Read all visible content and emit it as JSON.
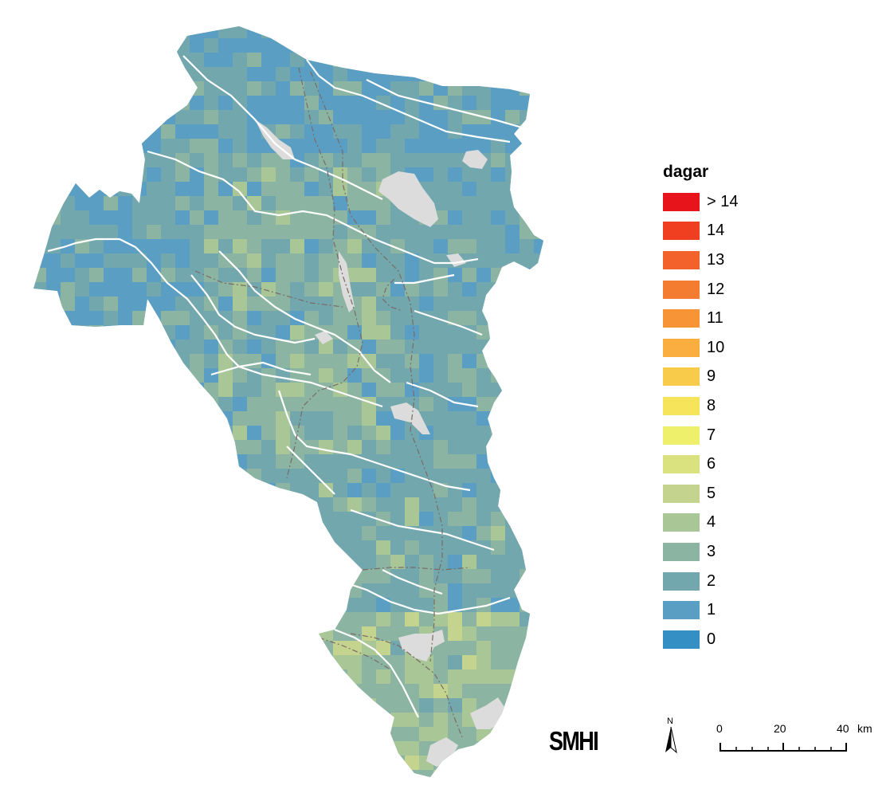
{
  "legend": {
    "title": "dagar",
    "items": [
      {
        "label": "> 14",
        "color": "#e8141c"
      },
      {
        "label": "14",
        "color": "#ef3f20"
      },
      {
        "label": "13",
        "color": "#f2622a"
      },
      {
        "label": "12",
        "color": "#f47c30"
      },
      {
        "label": "11",
        "color": "#f79536"
      },
      {
        "label": "10",
        "color": "#f9ae3f"
      },
      {
        "label": "9",
        "color": "#f8cc4a"
      },
      {
        "label": "8",
        "color": "#f6e55a"
      },
      {
        "label": "7",
        "color": "#eef06c"
      },
      {
        "label": "6",
        "color": "#d9e27f"
      },
      {
        "label": "5",
        "color": "#c4d48e"
      },
      {
        "label": "4",
        "color": "#a9c696"
      },
      {
        "label": "3",
        "color": "#8bb5a2"
      },
      {
        "label": "2",
        "color": "#72a7ad"
      },
      {
        "label": "1",
        "color": "#5b9ec3"
      },
      {
        "label": "0",
        "color": "#3490c4"
      }
    ]
  },
  "logo": "SMHI",
  "north_arrow": {
    "label": "N"
  },
  "scale_bar": {
    "ticks": [
      "0",
      "20",
      "40"
    ],
    "unit": "km"
  },
  "map": {
    "region_base_color": "#72a7ad",
    "lake_color": "#dcdcdc",
    "river_color": "#ffffff"
  }
}
